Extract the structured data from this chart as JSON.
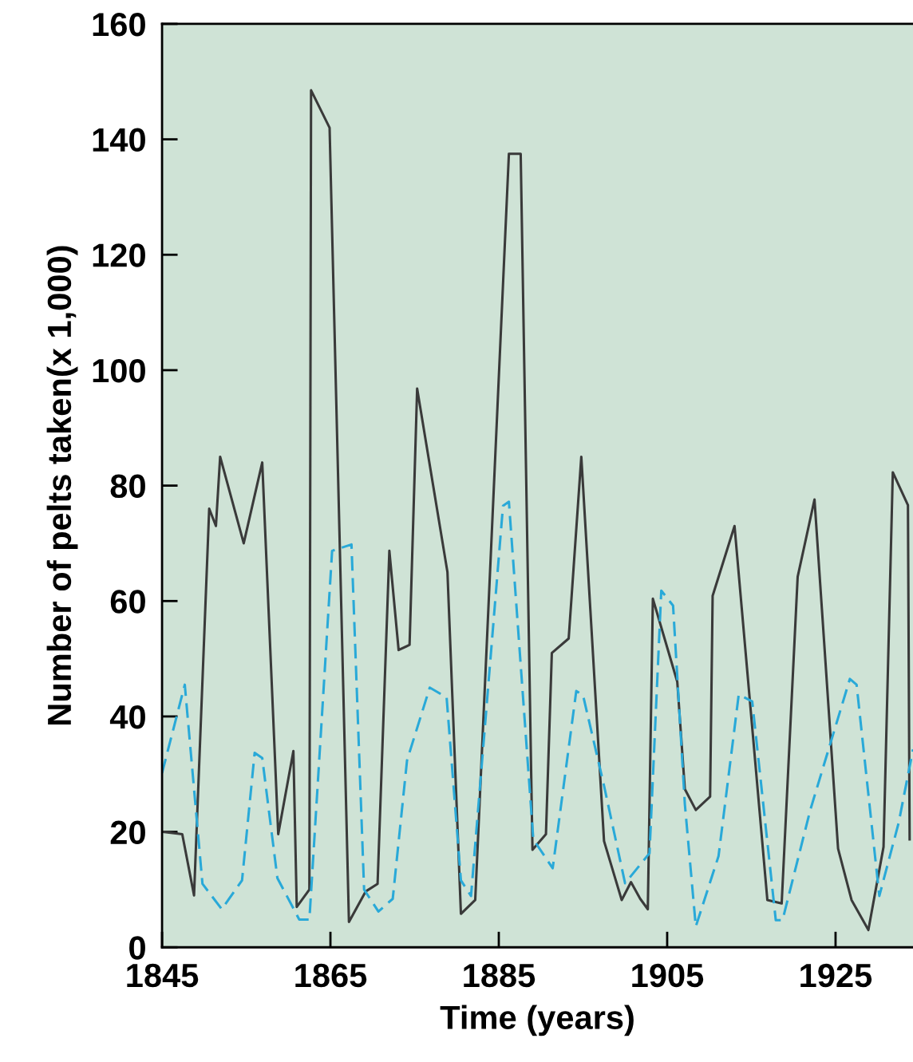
{
  "chart_data": {
    "type": "line",
    "xlabel": "Time (years)",
    "ylabel": "Number of pelts taken(x 1,000)",
    "xlim": [
      1845,
      1934.2
    ],
    "ylim": [
      0,
      160
    ],
    "xticks": [
      1845,
      1865,
      1885,
      1905,
      1925
    ],
    "yticks": [
      0,
      20,
      40,
      60,
      80,
      100,
      120,
      140,
      160
    ],
    "grid": false,
    "legend": false,
    "marker": "none",
    "series": [
      {
        "color": "#3a3a3a",
        "line_style": "solid",
        "x": [
          1845.2,
          1847.4,
          1848.8,
          1850.6,
          1851.4,
          1851.9,
          1854.7,
          1856.9,
          1858.8,
          1860.6,
          1861.0,
          1862.5,
          1862.7,
          1864.9,
          1867.2,
          1869.2,
          1870.6,
          1872.0,
          1873.1,
          1874.4,
          1875.3,
          1878.9,
          1880.5,
          1882.2,
          1886.2,
          1887.6,
          1889.0,
          1890.6,
          1891.3,
          1893.3,
          1894.8,
          1897.5,
          1899.6,
          1900.7,
          1901.8,
          1902.7,
          1903.3,
          1906.2,
          1907.1,
          1908.4,
          1910.1,
          1910.4,
          1913.0,
          1916.9,
          1918.6,
          1920.5,
          1922.5,
          1925.3,
          1926.9,
          1928.9,
          1930.7,
          1931.8,
          1933.6,
          1933.8
        ],
        "values": [
          20,
          19.6,
          9,
          76,
          73,
          85,
          70,
          84,
          19.6,
          34,
          7,
          10,
          148.5,
          142,
          4.4,
          9.7,
          11,
          68.7,
          51.5,
          52.4,
          96.8,
          65,
          5.8,
          8.2,
          137.5,
          137.5,
          16.9,
          19.6,
          51,
          53.5,
          85,
          18.4,
          8.2,
          11.3,
          8.4,
          6.6,
          60.4,
          46,
          27.4,
          23.8,
          26.1,
          60.9,
          73,
          8.2,
          7.6,
          64.2,
          77.6,
          17.1,
          8.2,
          3,
          17.4,
          82.3,
          76.6,
          18.7
        ]
      },
      {
        "color": "#29a9d8",
        "line_style": "dashed",
        "x": [
          1845,
          1847.7,
          1849.8,
          1852.1,
          1854.5,
          1856.0,
          1856.9,
          1858.7,
          1861.3,
          1862.5,
          1865.2,
          1867.5,
          1869.0,
          1870.7,
          1872.4,
          1874.1,
          1876.8,
          1878.8,
          1880.5,
          1881.7,
          1885.5,
          1886.2,
          1889.1,
          1891.4,
          1894.2,
          1895.0,
          1897.5,
          1900.0,
          1902.9,
          1904.3,
          1905.7,
          1907.1,
          1908.4,
          1911.1,
          1913.5,
          1915.1,
          1917.9,
          1918.7,
          1922.0,
          1926.7,
          1927.5,
          1930.2,
          1932.5,
          1934.2
        ],
        "values": [
          30.2,
          45.5,
          11,
          6.6,
          11.6,
          33.7,
          32.8,
          12,
          4.8,
          4.8,
          68.7,
          69.8,
          10,
          6.2,
          8.4,
          32.4,
          45,
          43.3,
          11.6,
          8.9,
          76.5,
          77.2,
          18.7,
          13.7,
          44.4,
          43.7,
          28,
          11.1,
          16.3,
          61.8,
          59.2,
          24.8,
          3.6,
          15.8,
          43.8,
          42.6,
          4.7,
          4.7,
          23.8,
          46.5,
          45.5,
          8.9,
          21.6,
          34.3
        ]
      }
    ]
  }
}
